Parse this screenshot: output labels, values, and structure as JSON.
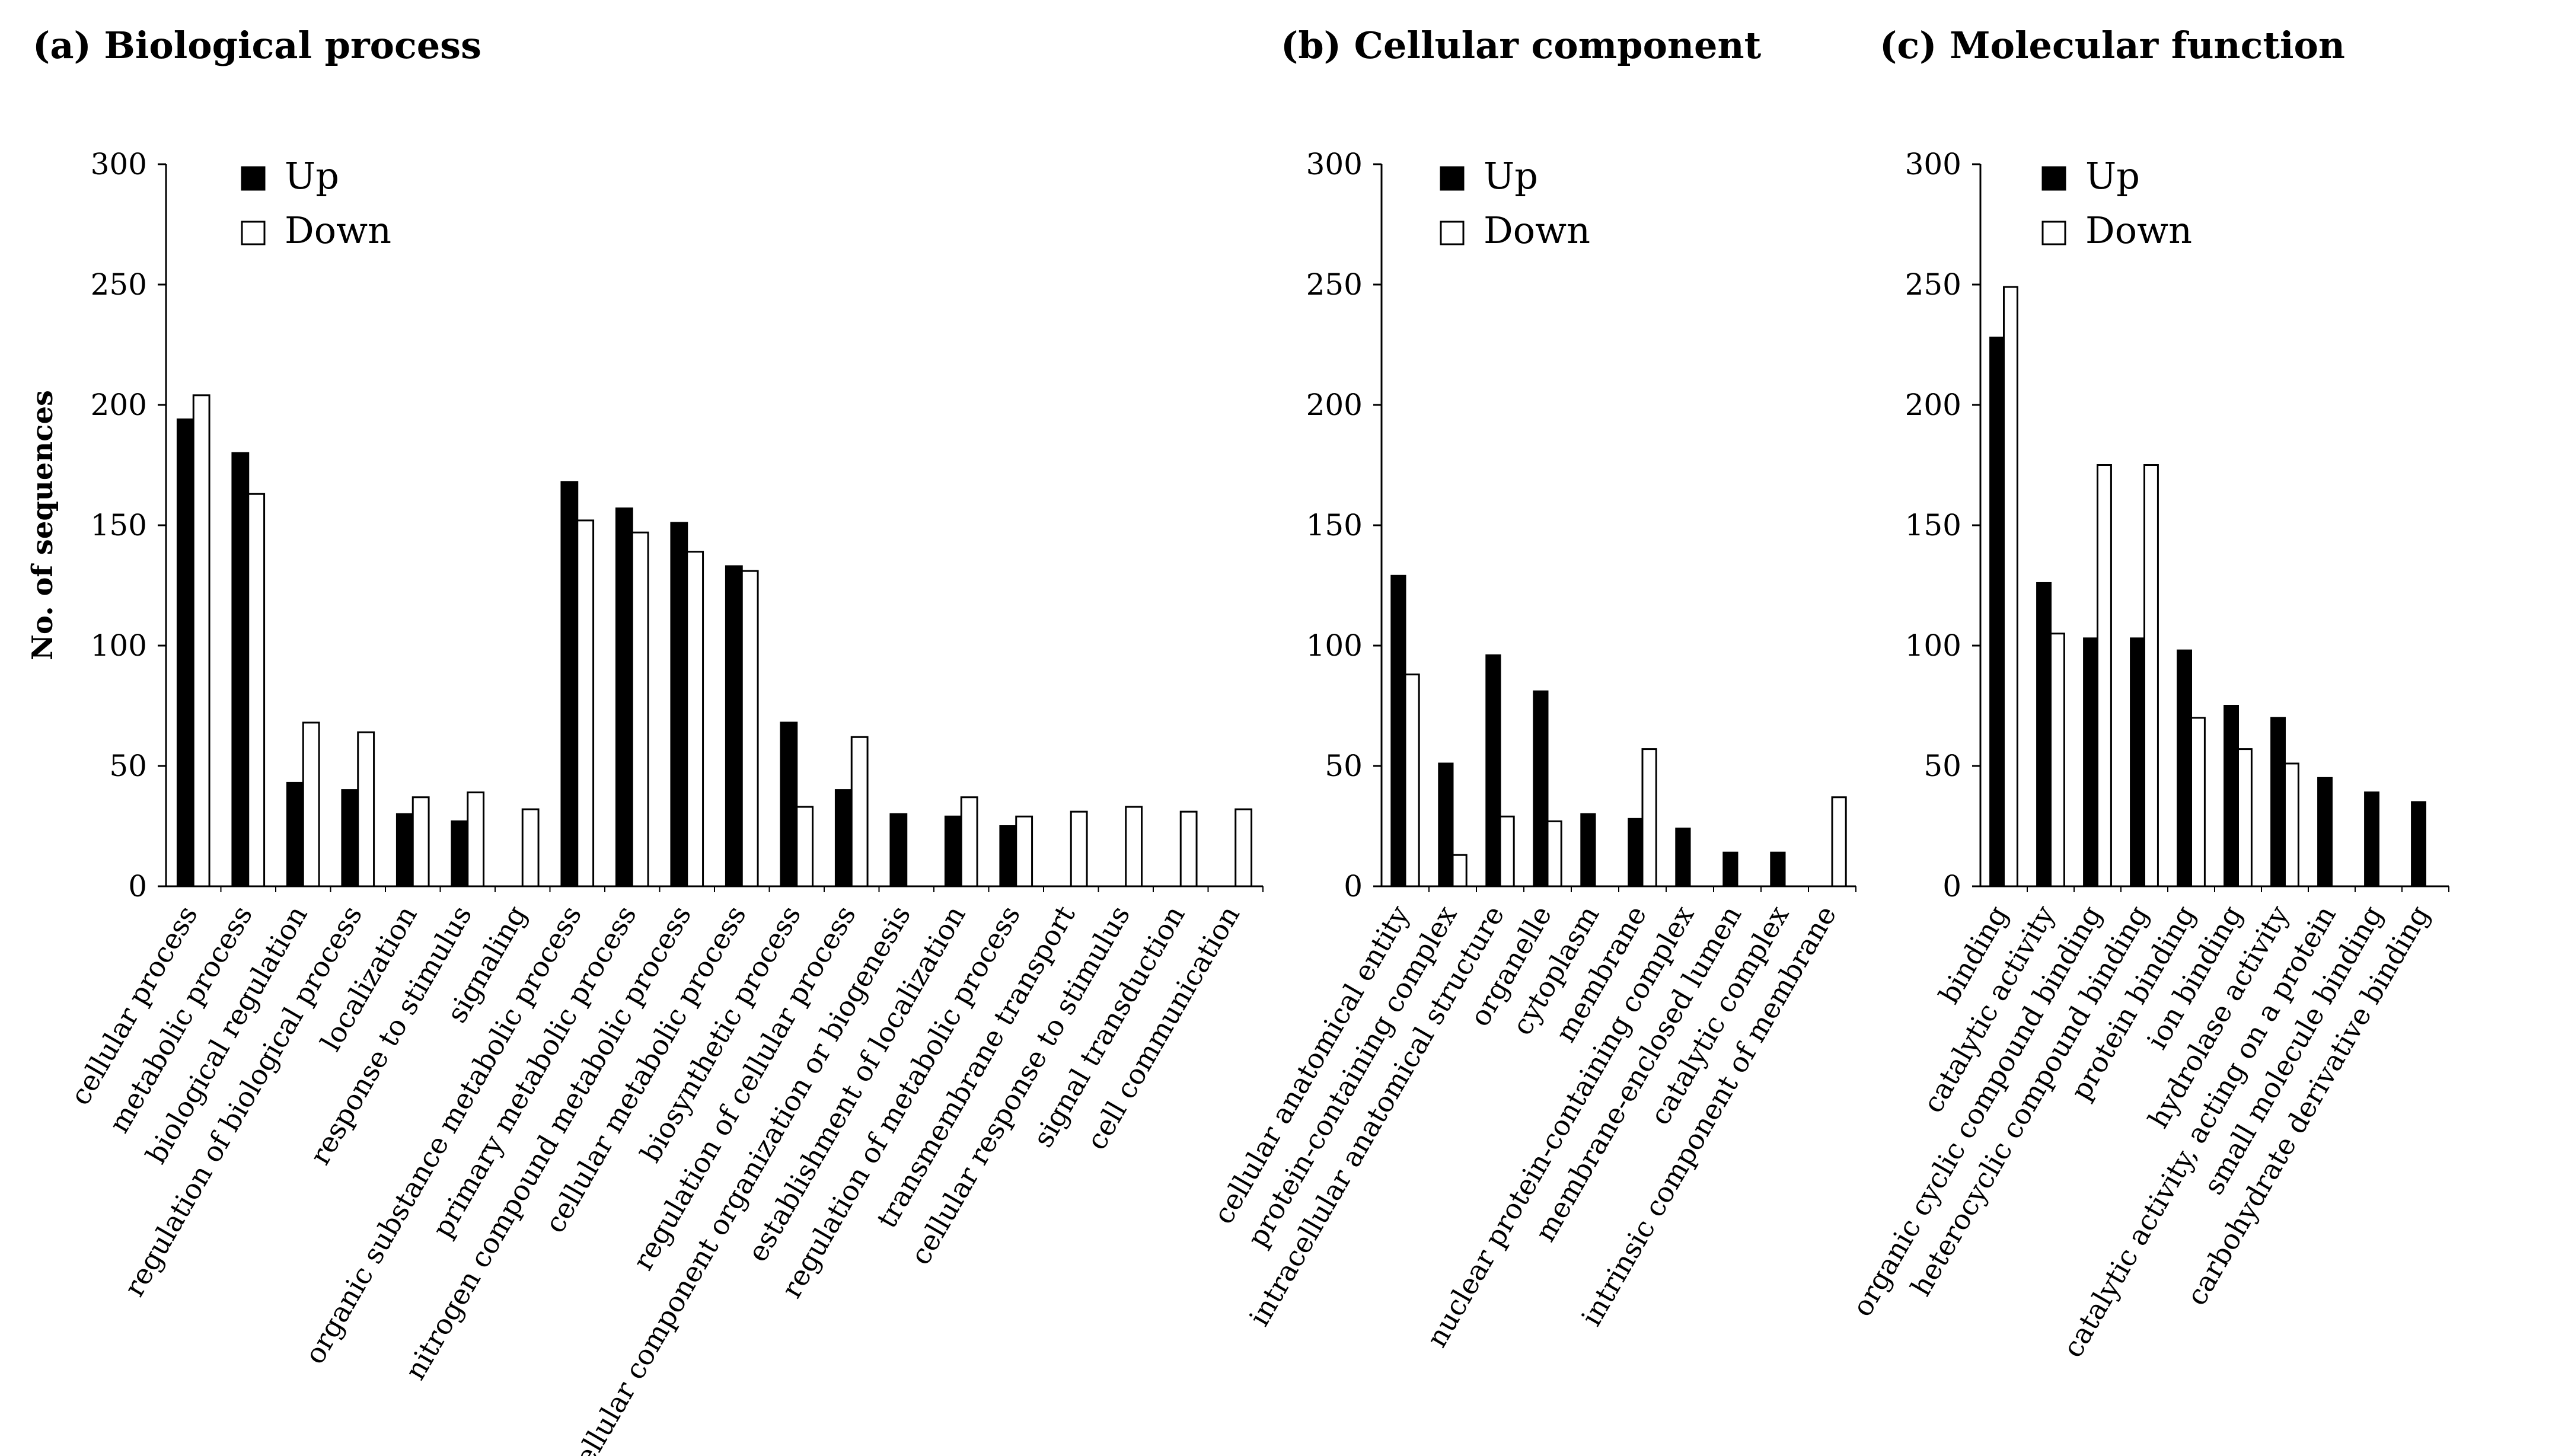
{
  "chart_data": [
    {
      "type": "bar",
      "title": "(a) Biological process",
      "ylabel": "No. of sequences",
      "xlabel": "",
      "ylim": [
        0,
        300
      ],
      "yticks": [
        0,
        50,
        100,
        150,
        200,
        250,
        300
      ],
      "legend": {
        "placement": "top-left",
        "entries": [
          "Up",
          "Down"
        ]
      },
      "categories": [
        "cellular process",
        "metabolic process",
        "biological regulation",
        "regulation of biological process",
        "localization",
        "response to stimulus",
        "signaling",
        "organic substance metabolic process",
        "primary metabolic process",
        "nitrogen compound metabolic process",
        "cellular metabolic process",
        "biosynthetic process",
        "regulation of cellular process",
        "cellular component organization or biogenesis",
        "establishment of localization",
        "regulation of metabolic process",
        "transmembrane transport",
        "cellular response to stimulus",
        "signal transduction",
        "cell communication"
      ],
      "series": [
        {
          "name": "Up",
          "color": "#000000",
          "values": [
            194,
            180,
            43,
            40,
            30,
            27,
            0,
            168,
            157,
            151,
            133,
            68,
            40,
            30,
            29,
            25,
            0,
            0,
            0,
            0
          ]
        },
        {
          "name": "Down",
          "color": "#ffffff",
          "values": [
            204,
            163,
            68,
            64,
            37,
            39,
            32,
            152,
            147,
            139,
            131,
            33,
            62,
            0,
            37,
            29,
            31,
            33,
            31,
            32
          ]
        }
      ]
    },
    {
      "type": "bar",
      "title": "(b) Cellular component",
      "ylabel": "",
      "xlabel": "",
      "ylim": [
        0,
        300
      ],
      "yticks": [
        0,
        50,
        100,
        150,
        200,
        250,
        300
      ],
      "legend": {
        "placement": "top-left",
        "entries": [
          "Up",
          "Down"
        ]
      },
      "categories": [
        "cellular anatomical entity",
        "protein-containing complex",
        "intracellular anatomical structure",
        "organelle",
        "cytoplasm",
        "membrane",
        "nuclear protein-containing complex",
        "membrane-enclosed lumen",
        "catalytic complex",
        "intrinsic component of membrane"
      ],
      "series": [
        {
          "name": "Up",
          "color": "#000000",
          "values": [
            129,
            51,
            96,
            81,
            30,
            28,
            24,
            14,
            14,
            0
          ]
        },
        {
          "name": "Down",
          "color": "#ffffff",
          "values": [
            88,
            13,
            29,
            27,
            0,
            57,
            0,
            0,
            0,
            37
          ]
        }
      ]
    },
    {
      "type": "bar",
      "title": "(c) Molecular function",
      "ylabel": "",
      "xlabel": "",
      "ylim": [
        0,
        300
      ],
      "yticks": [
        0,
        50,
        100,
        150,
        200,
        250,
        300
      ],
      "legend": {
        "placement": "top-left",
        "entries": [
          "Up",
          "Down"
        ]
      },
      "categories": [
        "binding",
        "catalytic activity",
        "organic cyclic compound binding",
        "heterocyclic compound binding",
        "protein binding",
        "ion binding",
        "hydrolase activity",
        "catalytic activity, acting on a protein",
        "small molecule binding",
        "carbohydrate derivative binding"
      ],
      "series": [
        {
          "name": "Up",
          "color": "#000000",
          "values": [
            228,
            126,
            103,
            103,
            98,
            75,
            70,
            45,
            39,
            35
          ]
        },
        {
          "name": "Down",
          "color": "#ffffff",
          "values": [
            249,
            105,
            175,
            175,
            70,
            57,
            51,
            0,
            0,
            0
          ]
        }
      ]
    }
  ]
}
